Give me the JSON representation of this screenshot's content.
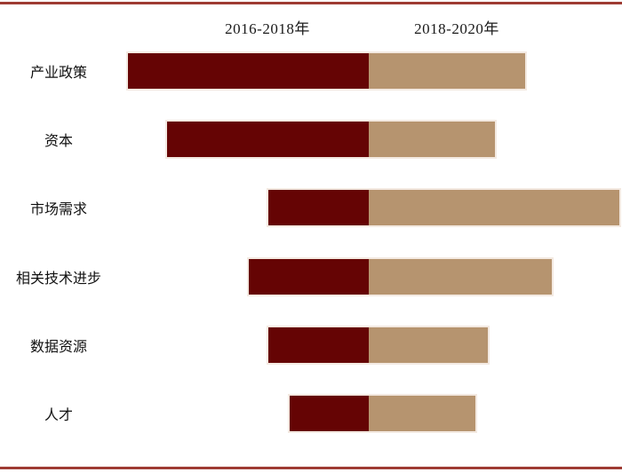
{
  "header": {
    "series1": "2016-2018年",
    "series2": "2018-2020年"
  },
  "colors": {
    "series1": "#650404",
    "series2": "#B6946F",
    "rule": "#9E3B33",
    "bar_outline": "#F3E9E1",
    "text": "#1a1a1a"
  },
  "chart_data": {
    "type": "bar",
    "orientation": "horizontal-diverging",
    "title": "",
    "categories": [
      "产业政策",
      "资本",
      "市场需求",
      "相关技术进步",
      "数据资源",
      "人才"
    ],
    "series": [
      {
        "name": "2016-2018年",
        "direction": "left",
        "color": "#650404",
        "values": [
          271,
          227,
          113,
          135,
          113,
          89
        ]
      },
      {
        "name": "2018-2020年",
        "direction": "right",
        "color": "#B6946F",
        "values": [
          176,
          142,
          282,
          206,
          134,
          120
        ]
      }
    ],
    "units": "relative bar length in px; no numeric axis or tick labels shown",
    "legend_position": "top",
    "axis": "none",
    "grid": false
  }
}
